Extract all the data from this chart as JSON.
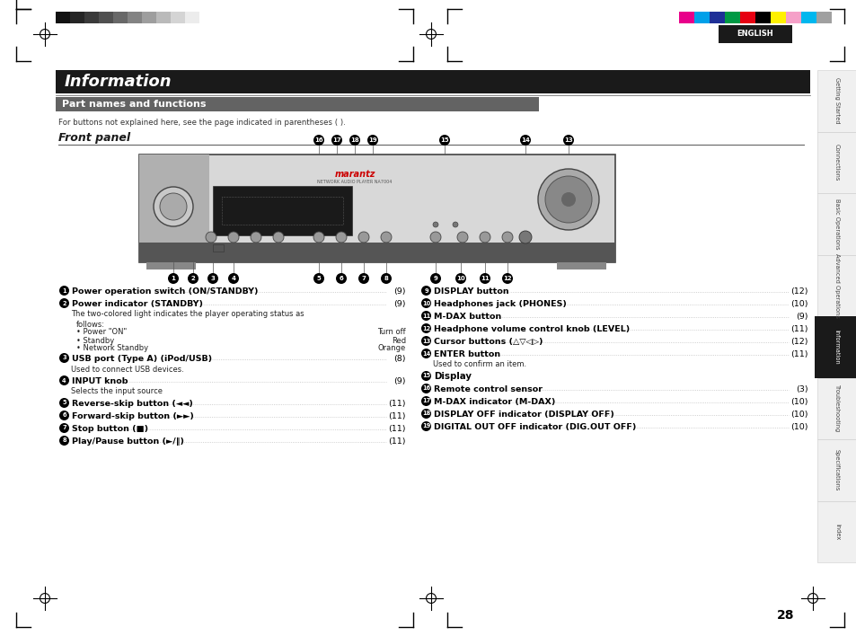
{
  "title": "Information",
  "subtitle": "Part names and functions",
  "section": "Front panel",
  "note": "For buttons not explained here, see the page indicated in parentheses ( ).",
  "page_num": "28",
  "language": "ENGLISH",
  "bg_color": "#ffffff",
  "title_bg": "#1a1a1a",
  "subtitle_bg": "#636363",
  "grayscale_colors": [
    "#111111",
    "#252525",
    "#3a3a3a",
    "#505050",
    "#686868",
    "#838383",
    "#9e9e9e",
    "#bababa",
    "#d4d4d4",
    "#ececec",
    "#ffffff"
  ],
  "color_bar": [
    "#e8008a",
    "#00a0e9",
    "#1e2f97",
    "#009944",
    "#e60012",
    "#000000",
    "#fff100",
    "#f5a0c8",
    "#00b7ee",
    "#a0a0a0"
  ],
  "sidebar_labels": [
    "Getting Started",
    "Connections",
    "Basic Operations",
    "Advanced Operations",
    "Information",
    "Troubleshooting",
    "Specifications",
    "Index"
  ],
  "sidebar_active": 4,
  "left_entries": [
    {
      "type": "main",
      "num": "1",
      "text": "Power operation switch (ON/STANDBY)",
      "page": "(9)"
    },
    {
      "type": "main",
      "num": "2",
      "text": "Power indicator (STANDBY)",
      "page": "(9)"
    },
    {
      "type": "sub",
      "text": "The two-colored light indicates the player operating status as"
    },
    {
      "type": "sub2",
      "text": "follows:"
    },
    {
      "type": "bullet",
      "label": "• Power \"ON\"",
      "val": "Turn off"
    },
    {
      "type": "bullet",
      "label": "• Standby",
      "val": "Red"
    },
    {
      "type": "bullet",
      "label": "• Network Standby",
      "val": "Orange"
    },
    {
      "type": "main",
      "num": "3",
      "text": "USB port (Type A) (iPod/USB)",
      "page": "(8)"
    },
    {
      "type": "sub",
      "text": "Used to connect USB devices."
    },
    {
      "type": "main",
      "num": "4",
      "text": "INPUT knob",
      "page": "(9)"
    },
    {
      "type": "sub",
      "text": "Selects the input source"
    },
    {
      "type": "main",
      "num": "5",
      "text": "Reverse-skip button (◄◄)",
      "page": "(11)"
    },
    {
      "type": "main",
      "num": "6",
      "text": "Forward-skip button (►►)",
      "page": "(11)"
    },
    {
      "type": "main",
      "num": "7",
      "text": "Stop button (■)",
      "page": "(11)"
    },
    {
      "type": "main",
      "num": "8",
      "text": "Play/Pause button (►/‖)",
      "page": "(11)"
    }
  ],
  "right_entries": [
    {
      "type": "main",
      "num": "9",
      "text": "DISPLAY button",
      "page": "(12)"
    },
    {
      "type": "main",
      "num": "10",
      "text": "Headphones jack (PHONES)",
      "page": "(10)"
    },
    {
      "type": "main",
      "num": "11",
      "text": "M-DAX button",
      "page": "(9)"
    },
    {
      "type": "main",
      "num": "12",
      "text": "Headphone volume control knob (LEVEL)",
      "page": "(11)"
    },
    {
      "type": "main",
      "num": "13",
      "text": "Cursor buttons (△▽◁▷)",
      "page": "(12)"
    },
    {
      "type": "main",
      "num": "14",
      "text": "ENTER button",
      "page": "(11)"
    },
    {
      "type": "sub",
      "text": "Used to confirm an item."
    },
    {
      "type": "main_bold",
      "num": "15",
      "text": "Display"
    },
    {
      "type": "main",
      "num": "16",
      "text": "Remote control sensor",
      "page": "(3)"
    },
    {
      "type": "main",
      "num": "17",
      "text": "M-DAX indicator (M-DAX)",
      "page": "(10)"
    },
    {
      "type": "main",
      "num": "18",
      "text": "DISPLAY OFF indicator (DISPLAY OFF)",
      "page": "(10)"
    },
    {
      "type": "main",
      "num": "19",
      "text": "DIGITAL OUT OFF indicator (DIG.OUT OFF)",
      "page": "(10)"
    }
  ]
}
